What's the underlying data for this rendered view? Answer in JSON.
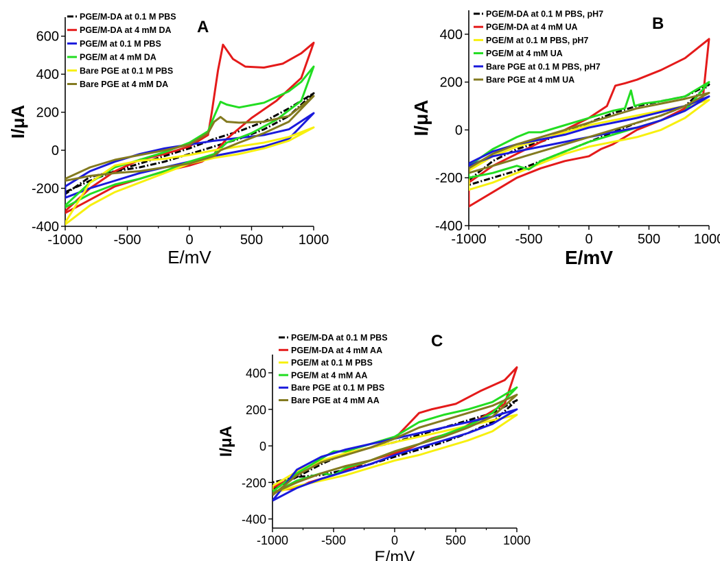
{
  "chart_data": [
    {
      "panel": "A",
      "type": "line",
      "xlabel": "E/mV",
      "ylabel": "I/μA",
      "xlim": [
        -1000,
        1000
      ],
      "ylim": [
        -400,
        700
      ],
      "xticks": [
        -1000,
        -500,
        0,
        500,
        1000
      ],
      "yticks": [
        -400,
        -200,
        0,
        200,
        400,
        600
      ],
      "grid": false,
      "legend_position": "top-left",
      "series": [
        {
          "name": "PGE/M-DA at 0.1 M PBS",
          "color": "#000000",
          "dash": "dashdot",
          "x": [
            -1000,
            -800,
            -600,
            -400,
            -200,
            0,
            200,
            400,
            600,
            800,
            1000,
            800,
            600,
            400,
            200,
            100,
            0,
            -200,
            -400,
            -600,
            -800,
            -1000
          ],
          "y": [
            -220,
            -160,
            -110,
            -70,
            -30,
            10,
            60,
            100,
            150,
            220,
            300,
            180,
            110,
            60,
            20,
            0,
            -20,
            -60,
            -90,
            -110,
            -140,
            -230
          ]
        },
        {
          "name": "PGE/M-DA at 4 mM DA",
          "color": "#e41a1a",
          "dash": "solid",
          "x": [
            -1000,
            -800,
            -600,
            -400,
            -200,
            0,
            150,
            180,
            230,
            270,
            350,
            450,
            600,
            750,
            900,
            1000,
            900,
            700,
            500,
            300,
            220,
            200,
            100,
            0,
            -200,
            -400,
            -600,
            -800,
            -1000
          ],
          "y": [
            -320,
            -200,
            -110,
            -50,
            -20,
            20,
            80,
            200,
            420,
            555,
            480,
            440,
            435,
            455,
            510,
            565,
            380,
            260,
            170,
            60,
            0,
            -20,
            -60,
            -80,
            -110,
            -150,
            -190,
            -260,
            -330
          ]
        },
        {
          "name": "PGE/M at 0.1 M PBS",
          "color": "#1a1adc",
          "dash": "solid",
          "x": [
            -1000,
            -800,
            -600,
            -400,
            -200,
            0,
            200,
            400,
            600,
            800,
            1000,
            800,
            600,
            400,
            200,
            0,
            -200,
            -400,
            -600,
            -800,
            -1000
          ],
          "y": [
            -190,
            -110,
            -60,
            -20,
            10,
            30,
            50,
            65,
            80,
            110,
            195,
            60,
            20,
            -5,
            -30,
            -60,
            -90,
            -120,
            -160,
            -200,
            -250
          ]
        },
        {
          "name": "PGE/M at 4 mM DA",
          "color": "#22dd22",
          "dash": "solid",
          "x": [
            -1000,
            -800,
            -600,
            -400,
            -200,
            0,
            150,
            200,
            250,
            300,
            400,
            600,
            800,
            900,
            1000,
            900,
            700,
            500,
            300,
            200,
            100,
            0,
            -200,
            -400,
            -600,
            -800,
            -1000
          ],
          "y": [
            -290,
            -170,
            -90,
            -50,
            -10,
            40,
            100,
            180,
            255,
            240,
            225,
            250,
            310,
            360,
            440,
            260,
            160,
            90,
            40,
            -20,
            -40,
            -60,
            -110,
            -150,
            -180,
            -230,
            -300
          ]
        },
        {
          "name": "Bare PGE at 0.1 M PBS",
          "color": "#f7f00f",
          "dash": "solid",
          "x": [
            -1000,
            -800,
            -600,
            -400,
            -200,
            0,
            200,
            400,
            600,
            800,
            1000,
            800,
            600,
            400,
            200,
            0,
            -200,
            -400,
            -600,
            -800,
            -1000
          ],
          "y": [
            -380,
            -170,
            -80,
            -55,
            -45,
            -25,
            0,
            20,
            40,
            70,
            120,
            50,
            10,
            -20,
            -40,
            -70,
            -120,
            -170,
            -220,
            -290,
            -390
          ]
        },
        {
          "name": "Bare PGE at 4 mM DA",
          "color": "#837a20",
          "dash": "solid",
          "x": [
            -1000,
            -800,
            -600,
            -400,
            -200,
            0,
            150,
            200,
            250,
            300,
            400,
            600,
            800,
            1000,
            800,
            600,
            400,
            250,
            200,
            100,
            0,
            -200,
            -400,
            -600,
            -800,
            -1000
          ],
          "y": [
            -150,
            -90,
            -50,
            -25,
            0,
            30,
            90,
            150,
            175,
            150,
            145,
            150,
            180,
            285,
            150,
            90,
            40,
            0,
            -30,
            -50,
            -70,
            -90,
            -110,
            -120,
            -135,
            -160
          ]
        }
      ]
    },
    {
      "panel": "B",
      "type": "line",
      "xlabel": "E/mV",
      "ylabel": "I/μA",
      "xlim": [
        -1000,
        1000
      ],
      "ylim": [
        -400,
        500
      ],
      "xticks": [
        -1000,
        -500,
        0,
        500,
        1000
      ],
      "yticks": [
        -400,
        -200,
        0,
        200,
        400
      ],
      "grid": false,
      "legend_position": "top-left",
      "series": [
        {
          "name": "PGE/M-DA at 0.1 M PBS, pH7",
          "color": "#000000",
          "dash": "dashdot",
          "x": [
            -1000,
            -800,
            -600,
            -400,
            -200,
            0,
            200,
            400,
            600,
            800,
            1000,
            800,
            600,
            400,
            200,
            0,
            -200,
            -400,
            -600,
            -800,
            -1000
          ],
          "y": [
            -210,
            -130,
            -80,
            -50,
            -10,
            30,
            70,
            100,
            120,
            140,
            190,
            100,
            60,
            30,
            -10,
            -50,
            -90,
            -130,
            -170,
            -200,
            -230
          ]
        },
        {
          "name": "PGE/M-DA at 4 mM UA",
          "color": "#e41a1a",
          "dash": "solid",
          "x": [
            -1000,
            -800,
            -600,
            -400,
            -200,
            0,
            150,
            220,
            300,
            400,
            600,
            800,
            1000,
            950,
            800,
            600,
            400,
            300,
            200,
            100,
            0,
            -200,
            -400,
            -600,
            -800,
            -1000
          ],
          "y": [
            -220,
            -150,
            -100,
            -50,
            0,
            50,
            100,
            185,
            195,
            210,
            250,
            300,
            380,
            140,
            90,
            40,
            0,
            -30,
            -60,
            -80,
            -110,
            -130,
            -160,
            -200,
            -260,
            -320
          ]
        },
        {
          "name": "PGE/M at 0.1 M PBS, pH7",
          "color": "#f7f00f",
          "dash": "solid",
          "x": [
            -1000,
            -800,
            -600,
            -400,
            -200,
            0,
            200,
            400,
            600,
            800,
            1000,
            800,
            600,
            400,
            200,
            0,
            -200,
            -400,
            -600,
            -800,
            -1000
          ],
          "y": [
            -170,
            -110,
            -70,
            -40,
            -10,
            20,
            40,
            60,
            80,
            100,
            125,
            50,
            0,
            -30,
            -50,
            -70,
            -100,
            -140,
            -180,
            -220,
            -250
          ]
        },
        {
          "name": "PGE/M at 4 mM UA",
          "color": "#22dd22",
          "dash": "solid",
          "x": [
            -1000,
            -800,
            -600,
            -500,
            -400,
            -200,
            0,
            200,
            300,
            350,
            380,
            450,
            600,
            800,
            1000,
            800,
            600,
            400,
            200,
            0,
            -200,
            -400,
            -500,
            -600,
            -700,
            -800,
            -1000
          ],
          "y": [
            -150,
            -80,
            -30,
            -10,
            -10,
            20,
            50,
            80,
            90,
            165,
            100,
            110,
            120,
            140,
            200,
            80,
            40,
            10,
            -20,
            -50,
            -90,
            -130,
            -165,
            -150,
            -165,
            -180,
            -200
          ]
        },
        {
          "name": "Bare PGE at 0.1 M PBS, pH7",
          "color": "#1a1adc",
          "dash": "solid",
          "x": [
            -1000,
            -800,
            -600,
            -400,
            -200,
            0,
            200,
            400,
            600,
            800,
            1000,
            800,
            600,
            400,
            200,
            0,
            -200,
            -400,
            -600,
            -800,
            -1000
          ],
          "y": [
            -140,
            -90,
            -60,
            -40,
            -20,
            10,
            30,
            50,
            75,
            100,
            140,
            80,
            40,
            10,
            -10,
            -30,
            -50,
            -70,
            -90,
            -110,
            -150
          ]
        },
        {
          "name": "Bare PGE at 4 mM UA",
          "color": "#837a20",
          "dash": "solid",
          "x": [
            -1000,
            -800,
            -600,
            -400,
            -200,
            0,
            200,
            400,
            600,
            800,
            1000,
            800,
            600,
            400,
            200,
            0,
            -200,
            -400,
            -600,
            -800,
            -1000
          ],
          "y": [
            -160,
            -100,
            -60,
            -30,
            0,
            30,
            60,
            90,
            110,
            130,
            155,
            100,
            60,
            30,
            0,
            -30,
            -60,
            -90,
            -120,
            -150,
            -180
          ]
        }
      ]
    },
    {
      "panel": "C",
      "type": "line",
      "xlabel": "E/mV",
      "ylabel": "I/μA",
      "xlim": [
        -1000,
        1000
      ],
      "ylim": [
        -450,
        500
      ],
      "xticks": [
        -1000,
        -500,
        0,
        500,
        1000
      ],
      "yticks": [
        -400,
        -200,
        0,
        200,
        400
      ],
      "grid": false,
      "legend_position": "top-left",
      "series": [
        {
          "name": "PGE/M-DA at 0.1 M PBS",
          "color": "#000000",
          "dash": "dashdot",
          "x": [
            -1000,
            -800,
            -600,
            -400,
            -200,
            0,
            200,
            400,
            600,
            800,
            1000,
            800,
            600,
            400,
            200,
            0,
            -200,
            -400,
            -600,
            -800,
            -1000
          ],
          "y": [
            -240,
            -170,
            -100,
            -40,
            -10,
            20,
            60,
            100,
            140,
            180,
            250,
            130,
            70,
            20,
            -20,
            -60,
            -100,
            -130,
            -160,
            -170,
            -200
          ]
        },
        {
          "name": "PGE/M-DA at 4 mM AA",
          "color": "#e41a1a",
          "dash": "solid",
          "x": [
            -1000,
            -800,
            -600,
            -400,
            -200,
            0,
            100,
            200,
            300,
            500,
            700,
            900,
            1000,
            900,
            700,
            500,
            300,
            100,
            0,
            -200,
            -400,
            -500,
            -600,
            -700,
            -800,
            -1000
          ],
          "y": [
            -230,
            -160,
            -90,
            -40,
            -10,
            40,
            110,
            180,
            200,
            230,
            300,
            360,
            430,
            230,
            150,
            80,
            40,
            -20,
            -40,
            -80,
            -130,
            -160,
            -180,
            -200,
            -230,
            -250
          ]
        },
        {
          "name": "PGE/M at 0.1 M PBS",
          "color": "#f7f00f",
          "dash": "solid",
          "x": [
            -1000,
            -800,
            -600,
            -400,
            -200,
            0,
            200,
            400,
            600,
            800,
            1000,
            800,
            600,
            400,
            200,
            0,
            -200,
            -400,
            -600,
            -800,
            -1000
          ],
          "y": [
            -220,
            -140,
            -80,
            -40,
            -10,
            20,
            50,
            80,
            110,
            140,
            170,
            80,
            30,
            -10,
            -50,
            -80,
            -120,
            -160,
            -190,
            -220,
            -260
          ]
        },
        {
          "name": "PGE/M at 4 mM AA",
          "color": "#22dd22",
          "dash": "solid",
          "x": [
            -1000,
            -800,
            -600,
            -500,
            -400,
            -200,
            0,
            200,
            400,
            600,
            800,
            1000,
            800,
            600,
            400,
            200,
            0,
            -200,
            -400,
            -500,
            -600,
            -800,
            -1000
          ],
          "y": [
            -250,
            -150,
            -70,
            -30,
            -30,
            10,
            50,
            130,
            170,
            200,
            240,
            320,
            180,
            110,
            60,
            10,
            -30,
            -80,
            -120,
            -160,
            -150,
            -190,
            -260
          ]
        },
        {
          "name": "Bare PGE at 0.1 M PBS",
          "color": "#1a1adc",
          "dash": "solid",
          "x": [
            -1000,
            -800,
            -600,
            -400,
            -200,
            0,
            200,
            400,
            600,
            800,
            1000,
            800,
            600,
            400,
            200,
            0,
            -200,
            -400,
            -600,
            -800,
            -1000
          ],
          "y": [
            -300,
            -130,
            -60,
            -20,
            10,
            40,
            70,
            100,
            130,
            160,
            200,
            120,
            70,
            30,
            -10,
            -50,
            -100,
            -140,
            -180,
            -230,
            -300
          ]
        },
        {
          "name": "Bare PGE at 4 mM AA",
          "color": "#837a20",
          "dash": "solid",
          "x": [
            -1000,
            -800,
            -600,
            -400,
            -200,
            0,
            200,
            400,
            600,
            800,
            1000,
            800,
            600,
            400,
            200,
            0,
            -200,
            -400,
            -600,
            -800,
            -1000
          ],
          "y": [
            -270,
            -160,
            -90,
            -50,
            -10,
            40,
            100,
            140,
            180,
            220,
            280,
            160,
            100,
            50,
            10,
            -30,
            -80,
            -110,
            -150,
            -200,
            -260
          ]
        }
      ]
    }
  ]
}
